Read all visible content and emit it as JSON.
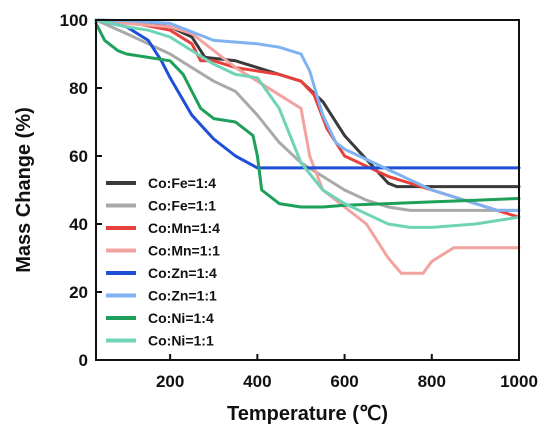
{
  "chart_data": {
    "type": "line",
    "title": "",
    "xlabel": "Temperature (℃)",
    "ylabel": "Mass Change (%)",
    "xlim": [
      30,
      1000
    ],
    "ylim": [
      0,
      100
    ],
    "xticks": [
      200,
      400,
      600,
      800,
      1000
    ],
    "yticks": [
      0,
      20,
      40,
      60,
      80,
      100
    ],
    "grid": false,
    "legend_position": "lower-left",
    "series": [
      {
        "name": "Co:Fe=1:4",
        "color": "#3a3a3a",
        "x": [
          30,
          100,
          200,
          250,
          280,
          350,
          400,
          450,
          500,
          550,
          600,
          650,
          700,
          720,
          800,
          900,
          1000
        ],
        "y": [
          100,
          99.5,
          98,
          95,
          89,
          88,
          86,
          84,
          82,
          76,
          66,
          59,
          52,
          51,
          51,
          51,
          51
        ]
      },
      {
        "name": "Co:Fe=1:1",
        "color": "#a9a9a9",
        "x": [
          30,
          100,
          150,
          200,
          250,
          300,
          350,
          400,
          450,
          500,
          550,
          600,
          650,
          700,
          750,
          800,
          900,
          1000
        ],
        "y": [
          100,
          96,
          93,
          90,
          86,
          82,
          79,
          72,
          64,
          58,
          54,
          50,
          47,
          45,
          44,
          44,
          44,
          44
        ]
      },
      {
        "name": "Co:Mn=1:4",
        "color": "#e8413b",
        "x": [
          30,
          100,
          200,
          250,
          270,
          300,
          350,
          400,
          450,
          500,
          530,
          560,
          600,
          650,
          700,
          800,
          900,
          1000
        ],
        "y": [
          100,
          99.5,
          97,
          93,
          88,
          88,
          86,
          85,
          84,
          82,
          78,
          68,
          60,
          57,
          54,
          50,
          46,
          42
        ]
      },
      {
        "name": "Co:Mn=1:1",
        "color": "#f2a3a0",
        "x": [
          30,
          100,
          200,
          250,
          300,
          350,
          400,
          450,
          500,
          520,
          550,
          600,
          650,
          700,
          730,
          780,
          800,
          850,
          1000
        ],
        "y": [
          100,
          99,
          98,
          96,
          91,
          86,
          82,
          78,
          74,
          60,
          50,
          45,
          40,
          30,
          25.5,
          25.5,
          29,
          33,
          33
        ]
      },
      {
        "name": "Co:Zn=1:4",
        "color": "#1e4fd8",
        "x": [
          30,
          100,
          150,
          180,
          200,
          250,
          300,
          350,
          400,
          450,
          500,
          600,
          700,
          800,
          1000
        ],
        "y": [
          100,
          98,
          94,
          88,
          83,
          72,
          65,
          60,
          56.5,
          56.5,
          56.5,
          56.5,
          56.5,
          56.5,
          56.5
        ]
      },
      {
        "name": "Co:Zn=1:1",
        "color": "#7fb2f0",
        "x": [
          30,
          100,
          200,
          300,
          400,
          450,
          500,
          520,
          550,
          580,
          600,
          650,
          700,
          750,
          800,
          900,
          950,
          1000
        ],
        "y": [
          100,
          99.8,
          99,
          94,
          93,
          92,
          90,
          85,
          72,
          64,
          62,
          59,
          56,
          53,
          50,
          46,
          44,
          44
        ]
      },
      {
        "name": "Co:Ni=1:4",
        "color": "#1fa05a",
        "x": [
          30,
          50,
          80,
          100,
          150,
          200,
          230,
          250,
          270,
          300,
          350,
          390,
          400,
          410,
          450,
          500,
          550,
          600,
          700,
          800,
          900,
          1000
        ],
        "y": [
          99,
          94,
          91,
          90,
          89,
          88,
          84,
          79,
          74,
          71,
          70,
          66,
          60,
          50,
          46,
          45,
          45,
          45.5,
          46,
          46.5,
          47,
          47.5
        ]
      },
      {
        "name": "Co:Ni=1:1",
        "color": "#6fd3b6",
        "x": [
          30,
          100,
          150,
          200,
          250,
          300,
          350,
          400,
          450,
          500,
          550,
          600,
          650,
          700,
          750,
          800,
          900,
          1000
        ],
        "y": [
          100,
          98,
          97,
          95,
          91,
          87,
          84,
          83,
          74,
          58,
          50,
          46,
          43,
          40,
          39,
          39,
          40,
          42
        ]
      }
    ]
  }
}
